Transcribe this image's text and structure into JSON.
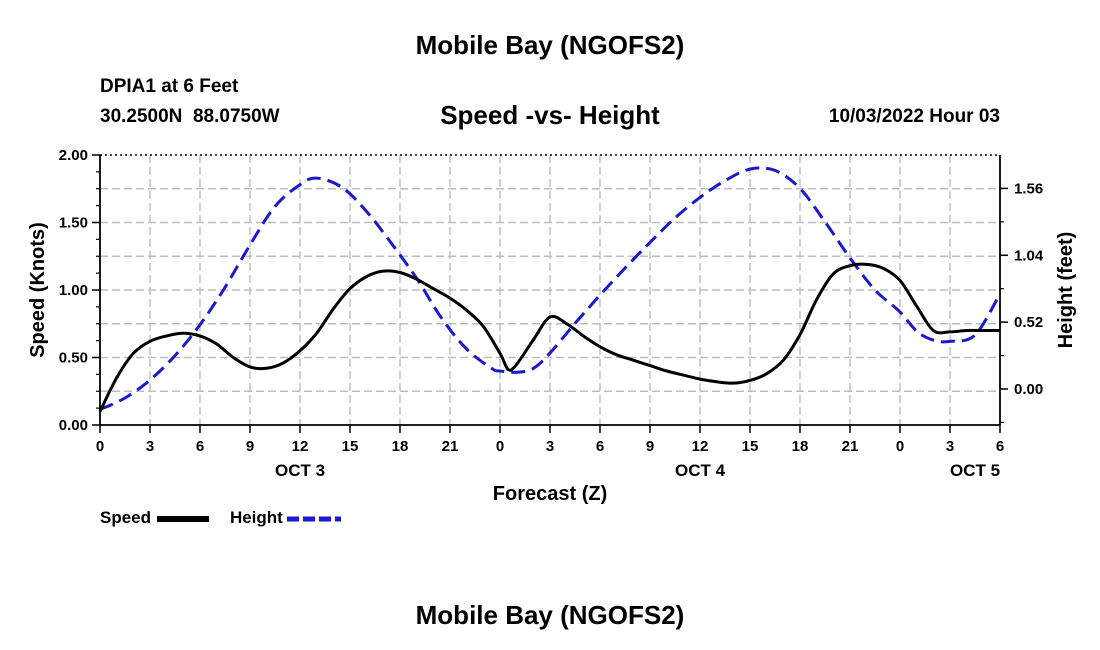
{
  "header": {
    "title": "Mobile Bay (NGOFS2)",
    "station": "DPIA1 at 6 Feet",
    "coords": "30.2500N  88.0750W",
    "date": "10/03/2022 Hour 03"
  },
  "footer": {
    "title": "Mobile Bay (NGOFS2)"
  },
  "legend": {
    "speed_label": "Speed",
    "height_label": "Height"
  },
  "colors": {
    "speed": "#000000",
    "height": "#1a1acc",
    "grid": "#bdbdbd"
  },
  "chart_data": {
    "type": "line",
    "title": "Speed -vs- Height",
    "xlabel": "Forecast (Z)",
    "ylabel": "Speed (Knots)",
    "y2label": "Height (feet)",
    "x_unit": "hours from Oct 3 00Z",
    "xlim": [
      0,
      54
    ],
    "ylim": [
      0,
      2.0
    ],
    "y2lim": [
      -0.28,
      1.82
    ],
    "x_ticks": [
      0,
      3,
      6,
      9,
      12,
      15,
      18,
      21,
      24,
      27,
      30,
      33,
      36,
      39,
      42,
      45,
      48,
      51,
      54
    ],
    "x_tick_labels": [
      "0",
      "3",
      "6",
      "9",
      "12",
      "15",
      "18",
      "21",
      "0",
      "3",
      "6",
      "9",
      "12",
      "15",
      "18",
      "21",
      "0",
      "3",
      "6"
    ],
    "y_ticks": [
      0.0,
      0.5,
      1.0,
      1.5,
      2.0
    ],
    "y_tick_labels": [
      "0.00",
      "0.50",
      "1.00",
      "1.50",
      "2.00"
    ],
    "y2_ticks": [
      0.0,
      0.52,
      1.04,
      1.56
    ],
    "y2_tick_labels": [
      "0.00",
      "0.52",
      "1.04",
      "1.56"
    ],
    "date_labels": [
      {
        "x": 12,
        "label": "OCT 3"
      },
      {
        "x": 36,
        "label": "OCT 4"
      },
      {
        "x": 52.5,
        "label": "OCT 5"
      }
    ],
    "grid": true,
    "legend_position": "bottom-left",
    "series": [
      {
        "name": "Speed",
        "axis": "left",
        "style": "solid",
        "x": [
          0,
          1,
          2,
          3,
          4,
          5,
          6,
          7,
          8,
          9,
          10,
          11,
          12,
          13,
          14,
          15,
          16,
          17,
          18,
          19,
          20,
          21,
          22,
          23,
          24,
          24.5,
          25,
          26,
          27,
          28,
          29,
          30,
          31,
          32,
          33,
          34,
          35,
          36,
          37,
          38,
          39,
          40,
          41,
          42,
          43,
          44,
          45,
          46,
          47,
          48,
          49,
          50,
          51,
          52,
          53,
          54
        ],
        "y": [
          0.1,
          0.35,
          0.53,
          0.62,
          0.66,
          0.68,
          0.66,
          0.6,
          0.5,
          0.43,
          0.42,
          0.46,
          0.55,
          0.68,
          0.86,
          1.01,
          1.1,
          1.14,
          1.13,
          1.08,
          1.01,
          0.94,
          0.85,
          0.73,
          0.53,
          0.41,
          0.45,
          0.63,
          0.8,
          0.75,
          0.66,
          0.58,
          0.52,
          0.48,
          0.44,
          0.4,
          0.37,
          0.34,
          0.32,
          0.31,
          0.33,
          0.38,
          0.48,
          0.67,
          0.93,
          1.12,
          1.18,
          1.19,
          1.16,
          1.07,
          0.88,
          0.7,
          0.69,
          0.7,
          0.7,
          0.7
        ]
      },
      {
        "name": "Height",
        "axis": "right",
        "style": "dashed",
        "x": [
          0,
          1.5,
          3,
          4.5,
          6,
          7.5,
          9,
          10.5,
          12,
          13,
          14.5,
          16,
          17.5,
          19,
          20.5,
          22,
          23.5,
          24,
          25,
          26,
          27,
          28.5,
          30,
          31.5,
          33,
          34.5,
          36,
          37.5,
          39,
          40.5,
          42,
          43.5,
          45,
          46.5,
          48,
          49,
          50,
          51,
          52.5,
          54
        ],
        "y": [
          -0.16,
          -0.07,
          0.07,
          0.26,
          0.5,
          0.79,
          1.12,
          1.42,
          1.59,
          1.64,
          1.57,
          1.38,
          1.13,
          0.86,
          0.55,
          0.31,
          0.16,
          0.14,
          0.13,
          0.16,
          0.28,
          0.51,
          0.73,
          0.94,
          1.14,
          1.33,
          1.49,
          1.62,
          1.71,
          1.7,
          1.56,
          1.3,
          1.02,
          0.77,
          0.6,
          0.45,
          0.38,
          0.37,
          0.42,
          0.74
        ]
      }
    ]
  }
}
